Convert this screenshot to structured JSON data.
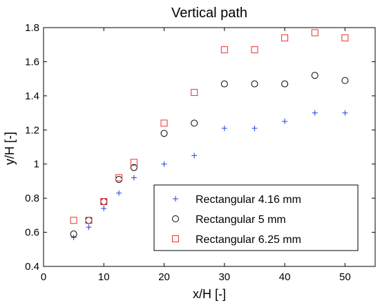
{
  "chart_data": {
    "type": "scatter",
    "title": "Vertical path",
    "xlabel": "x/H [-]",
    "ylabel": "y/H [-]",
    "xlim": [
      0,
      55
    ],
    "ylim": [
      0.4,
      1.8
    ],
    "xticks": [
      0,
      10,
      20,
      30,
      40,
      50
    ],
    "yticks": [
      0.4,
      0.6,
      0.8,
      1,
      1.2,
      1.4,
      1.6,
      1.8
    ],
    "xtick_labels": [
      "0",
      "10",
      "20",
      "30",
      "40",
      "50"
    ],
    "ytick_labels": [
      "0.4",
      "0.6",
      "0.8",
      "1",
      "1.2",
      "1.4",
      "1.6",
      "1.8"
    ],
    "grid": false,
    "legend_position": "bottom-right",
    "series": [
      {
        "name": "Rectangular 4.16 mm",
        "marker": "plus",
        "color": "#1f3fd9",
        "x": [
          5,
          7.5,
          10,
          12.5,
          15,
          20,
          25,
          30,
          35,
          40,
          45,
          50
        ],
        "y": [
          0.57,
          0.63,
          0.74,
          0.83,
          0.92,
          1.0,
          1.05,
          1.21,
          1.21,
          1.25,
          1.3,
          1.3
        ]
      },
      {
        "name": "Rectangular 5 mm",
        "marker": "circle",
        "color": "#000000",
        "x": [
          5,
          7.5,
          10,
          12.5,
          15,
          20,
          25,
          30,
          35,
          40,
          45,
          50
        ],
        "y": [
          0.59,
          0.67,
          0.78,
          0.91,
          0.98,
          1.18,
          1.24,
          1.47,
          1.47,
          1.47,
          1.52,
          1.49
        ]
      },
      {
        "name": "Rectangular 6.25 mm",
        "marker": "square",
        "color": "#e8302c",
        "x": [
          5,
          7.5,
          10,
          12.5,
          15,
          20,
          25,
          30,
          35,
          40,
          45,
          50
        ],
        "y": [
          0.67,
          0.67,
          0.78,
          0.92,
          1.01,
          1.24,
          1.42,
          1.67,
          1.67,
          1.74,
          1.77,
          1.74
        ]
      }
    ]
  }
}
